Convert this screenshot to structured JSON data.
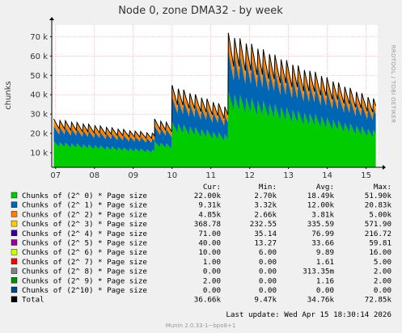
{
  "chart_data": {
    "type": "area",
    "title": "Node 0, zone DMA32 - by week",
    "ylabel": "chunks",
    "side_label": "RRDTOOL / TOBI OETIKER",
    "x_ticks": [
      "07",
      "08",
      "09",
      "10",
      "11",
      "12",
      "13",
      "14",
      "15"
    ],
    "y_ticks": [
      {
        "value": 10000,
        "label": "10 k"
      },
      {
        "value": 20000,
        "label": "20 k"
      },
      {
        "value": 30000,
        "label": "30 k"
      },
      {
        "value": 40000,
        "label": "40 k"
      },
      {
        "value": 50000,
        "label": "50 k"
      },
      {
        "value": 60000,
        "label": "60 k"
      },
      {
        "value": 70000,
        "label": "70 k"
      }
    ],
    "ylim": [
      2500,
      76000
    ],
    "xlim": [
      6.9,
      15.3
    ],
    "grid": true,
    "segments": [
      {
        "start": 6.95,
        "end": 9.55,
        "total_top": 27500,
        "total_bottom": 20000
      },
      {
        "start": 9.55,
        "end": 10.0,
        "total_top": 27500,
        "total_bottom": 25000
      },
      {
        "start": 10.0,
        "end": 11.45,
        "total_top": 45000,
        "total_bottom": 34000
      },
      {
        "start": 11.45,
        "end": 15.25,
        "total_top": 72000,
        "total_bottom": 38000
      }
    ],
    "legend_headers": [
      "Cur:",
      "Min:",
      "Avg:",
      "Max:"
    ],
    "legend": [
      {
        "name": "Chunks of (2^ 0) * Page size",
        "color": "#00cc00",
        "cur": "22.00k",
        "min": "2.70k",
        "avg": "18.49k",
        "max": "51.90k"
      },
      {
        "name": "Chunks of (2^ 1) * Page size",
        "color": "#0066b3",
        "cur": "9.31k",
        "min": "3.32k",
        "avg": "12.00k",
        "max": "20.83k"
      },
      {
        "name": "Chunks of (2^ 2) * Page size",
        "color": "#ff8000",
        "cur": "4.85k",
        "min": "2.66k",
        "avg": "3.81k",
        "max": "5.00k"
      },
      {
        "name": "Chunks of (2^ 3) * Page size",
        "color": "#ffcc00",
        "cur": "368.78",
        "min": "232.55",
        "avg": "335.59",
        "max": "571.90"
      },
      {
        "name": "Chunks of (2^ 4) * Page size",
        "color": "#330099",
        "cur": "71.00",
        "min": "35.14",
        "avg": "76.99",
        "max": "216.72"
      },
      {
        "name": "Chunks of (2^ 5) * Page size",
        "color": "#990099",
        "cur": "40.00",
        "min": "13.27",
        "avg": "33.66",
        "max": "59.81"
      },
      {
        "name": "Chunks of (2^ 6) * Page size",
        "color": "#ccff00",
        "cur": "10.00",
        "min": "6.00",
        "avg": "9.89",
        "max": "16.00"
      },
      {
        "name": "Chunks of (2^ 7) * Page size",
        "color": "#ff0000",
        "cur": "1.00",
        "min": "0.00",
        "avg": "1.61",
        "max": "5.00"
      },
      {
        "name": "Chunks of (2^ 8) * Page size",
        "color": "#808080",
        "cur": "0.00",
        "min": "0.00",
        "avg": "313.35m",
        "max": "2.00"
      },
      {
        "name": "Chunks of (2^ 9) * Page size",
        "color": "#008f00",
        "cur": "2.00",
        "min": "0.00",
        "avg": "1.16",
        "max": "2.00"
      },
      {
        "name": "Chunks of (2^10) * Page size",
        "color": "#00487d",
        "cur": "0.00",
        "min": "0.00",
        "avg": "0.00",
        "max": "0.00"
      },
      {
        "name": "Total",
        "color": "#000000",
        "cur": "36.66k",
        "min": "9.47k",
        "avg": "34.76k",
        "max": "72.85k"
      }
    ],
    "last_update": "Last update: Wed Apr 15 18:30:14 2026",
    "footer": "Munin 2.0.33-1~bpo8+1"
  }
}
